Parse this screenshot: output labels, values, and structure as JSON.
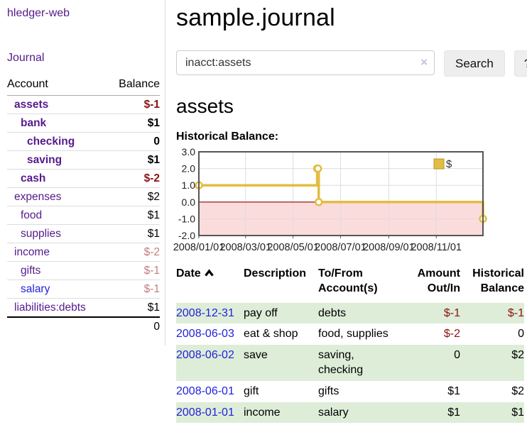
{
  "app": {
    "brand": "hledger-web",
    "nav": {
      "journal": "Journal"
    }
  },
  "sidebar": {
    "accounts_table": {
      "headers": [
        "Account",
        "Balance"
      ],
      "rows": [
        {
          "name": "assets",
          "balance": "$-1",
          "depth": 1,
          "bold": true,
          "negative": "strong"
        },
        {
          "name": "bank",
          "balance": "$1",
          "depth": 2,
          "bold": true
        },
        {
          "name": "checking",
          "balance": "0",
          "depth": 3,
          "bold": true
        },
        {
          "name": "saving",
          "balance": "$1",
          "depth": 3,
          "bold": true
        },
        {
          "name": "cash",
          "balance": "$-2",
          "depth": 2,
          "bold": true,
          "negative": "strong"
        },
        {
          "name": "expenses",
          "balance": "$2",
          "depth": 1
        },
        {
          "name": "food",
          "balance": "$1",
          "depth": 2
        },
        {
          "name": "supplies",
          "balance": "$1",
          "depth": 2
        },
        {
          "name": "income",
          "balance": "$-2",
          "depth": 1,
          "negative": "soft"
        },
        {
          "name": "gifts",
          "balance": "$-1",
          "depth": 2,
          "negative": "soft"
        },
        {
          "name": "salary",
          "balance": "$-1",
          "depth": 2,
          "negative": "soft",
          "link_style": "unvisited"
        },
        {
          "name": "liabilities:debts",
          "balance": "$1",
          "depth": 1
        }
      ],
      "total": "0"
    }
  },
  "main": {
    "title": "sample.journal",
    "search": {
      "value": "inacct:assets",
      "clear_icon": "×",
      "search_button": "Search",
      "help_button": "?"
    },
    "account_heading": "assets",
    "chart_label": "Historical Balance:"
  },
  "chart_data": {
    "type": "line",
    "step": true,
    "title": "Historical Balance",
    "legend": "$",
    "legend_position": "top-right",
    "ylim": [
      -2,
      3
    ],
    "y_ticks": [
      3.0,
      2.0,
      1.0,
      0.0,
      -1.0,
      -2.0
    ],
    "x_ticks": [
      "2008/01/01",
      "2008/03/01",
      "2008/05/01",
      "2008/07/01",
      "2008/09/01",
      "2008/11/01"
    ],
    "x_range": [
      "2008-01-01",
      "2008-12-31"
    ],
    "series": [
      {
        "name": "$",
        "color": "#e3bc42",
        "marker": "open-circle",
        "points": [
          {
            "x": "2008-01-01",
            "y": 1
          },
          {
            "x": "2008-06-01",
            "y": 2
          },
          {
            "x": "2008-06-02",
            "y": 2
          },
          {
            "x": "2008-06-03",
            "y": 0
          },
          {
            "x": "2008-12-31",
            "y": -1
          }
        ]
      }
    ],
    "style": {
      "grid_color": "#dddddd",
      "border_color": "#555555",
      "zero_line_color": "#8b0000",
      "negative_region_fill": "#fbdcdc",
      "label_color": "#222222"
    }
  },
  "register_table": {
    "headers": [
      {
        "lines": [
          "Date"
        ],
        "sorted": "asc"
      },
      {
        "lines": [
          "Description"
        ]
      },
      {
        "lines": [
          "To/From",
          "Account(s)"
        ]
      },
      {
        "lines": [
          "Amount",
          "Out/In"
        ],
        "align": "right"
      },
      {
        "lines": [
          "Historical",
          "Balance"
        ],
        "align": "right"
      }
    ],
    "rows": [
      {
        "date": "2008-12-31",
        "description": "pay off",
        "accounts": "debts",
        "amount": "$-1",
        "balance": "$-1",
        "amount_negative": true,
        "balance_negative": true
      },
      {
        "date": "2008-06-03",
        "description": "eat & shop",
        "accounts": "food, supplies",
        "amount": "$-2",
        "balance": "0",
        "amount_negative": true
      },
      {
        "date": "2008-06-02",
        "description": "save",
        "accounts": "saving, checking",
        "amount": "0",
        "balance": "$2"
      },
      {
        "date": "2008-06-01",
        "description": "gift",
        "accounts": "gifts",
        "amount": "$1",
        "balance": "$2"
      },
      {
        "date": "2008-01-01",
        "description": "income",
        "accounts": "salary",
        "amount": "$1",
        "balance": "$1"
      }
    ]
  },
  "colors": {
    "link_visited_purple": "#551a8b",
    "link_blue": "#2222dd",
    "negative_strong": "#8b1212",
    "negative_soft": "#c47e7e",
    "row_stripe_green": "#deedd8",
    "chart_line_gold": "#e3bc42"
  }
}
